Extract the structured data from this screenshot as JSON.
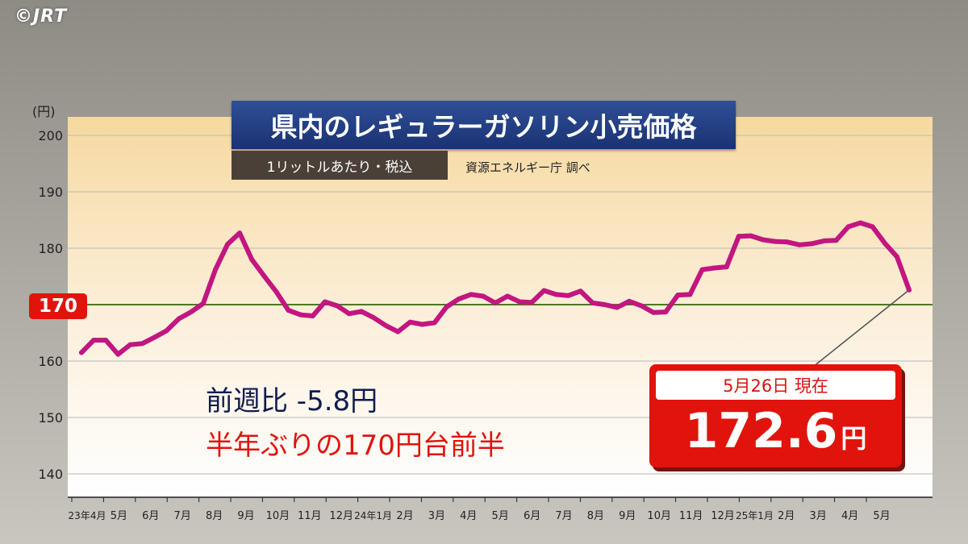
{
  "logo": "©JRT",
  "title": "県内のレギュラーガソリン小売価格",
  "subtitle": "1リットルあたり・税込",
  "source": "資源エネルギー庁 調べ",
  "reference_label": "170",
  "week_over_week": "前週比 -5.8円",
  "note": "半年ぶりの170円台前半",
  "current": {
    "date": "5月26日 現在",
    "value": "172.6",
    "unit": "円"
  },
  "colors": {
    "line": "#c21680",
    "reference_line": "#4b7a1e",
    "accent_red": "#e0140d",
    "title_bg": "#1f3a80"
  },
  "chart_data": {
    "type": "line",
    "ylabel": "(円)",
    "ylim": [
      140,
      200
    ],
    "yticks": [
      140,
      150,
      160,
      170,
      180,
      190,
      200
    ],
    "reference_line": 170,
    "grid": true,
    "x_tick_labels": [
      "23年4月",
      "5月",
      "6月",
      "7月",
      "8月",
      "9月",
      "10月",
      "11月",
      "12月",
      "24年1月",
      "2月",
      "3月",
      "4月",
      "5月",
      "6月",
      "7月",
      "8月",
      "9月",
      "10月",
      "11月",
      "12月",
      "25年1月",
      "2月",
      "3月",
      "4月",
      "5月"
    ],
    "series": [
      {
        "values": [
          161.5,
          163.7,
          163.7,
          161.2,
          162.9,
          163.1,
          164.2,
          165.4,
          167.5,
          168.7,
          170.2,
          176.2,
          180.7,
          182.7,
          178.0,
          175.1,
          172.3,
          169.0,
          168.2,
          168.0,
          170.5,
          169.8,
          168.4,
          168.8,
          167.7,
          166.3,
          165.2,
          166.9,
          166.5,
          166.8,
          169.6,
          171.0,
          171.8,
          171.5,
          170.3,
          171.5,
          170.5,
          170.4,
          172.5,
          171.8,
          171.6,
          172.4,
          170.3,
          170.0,
          169.5,
          170.6,
          169.8,
          168.6,
          168.7,
          171.7,
          171.8,
          176.2,
          176.5,
          176.7,
          182.1,
          182.2,
          181.5,
          181.2,
          181.1,
          180.6,
          180.8,
          181.3,
          181.4,
          183.8,
          184.5,
          183.8,
          180.9,
          178.5,
          172.6
        ]
      }
    ]
  }
}
